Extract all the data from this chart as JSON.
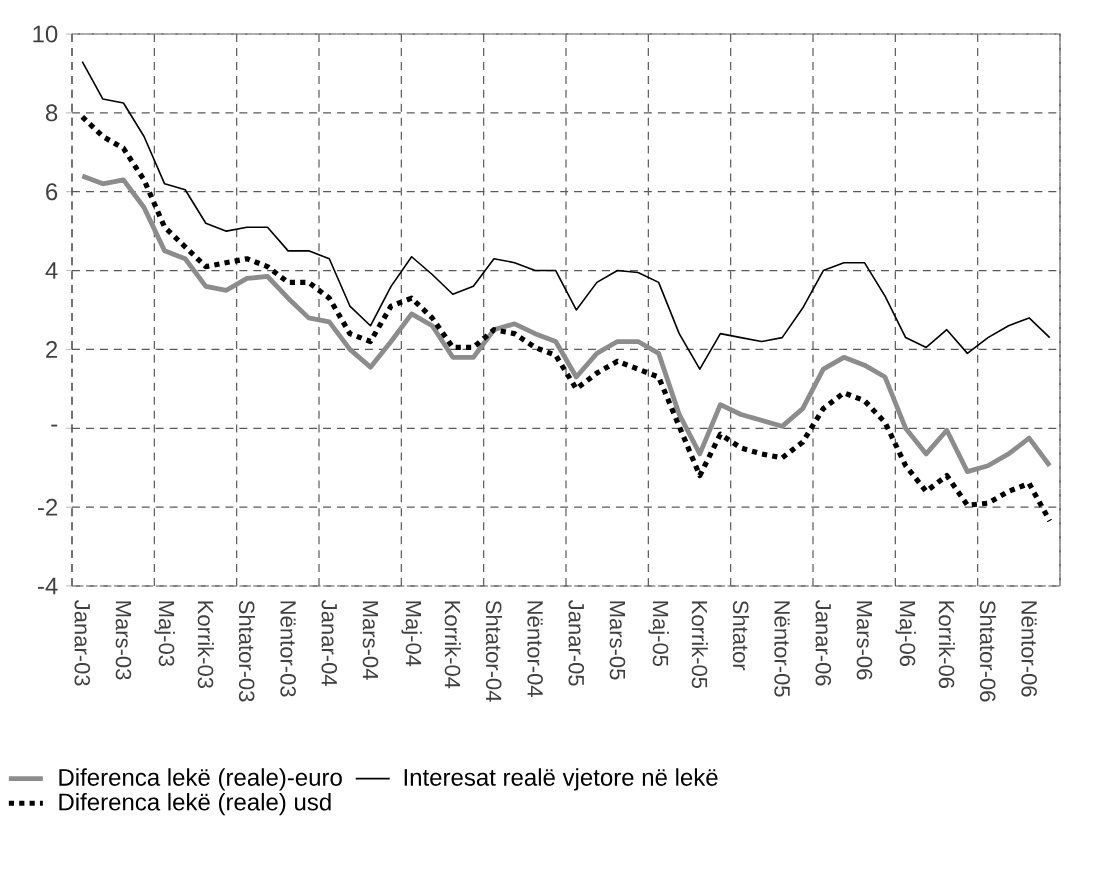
{
  "chart_data": {
    "type": "line",
    "categories": [
      "Janar-03",
      null,
      "Mars-03",
      null,
      "Maj-03",
      null,
      "Korrik-03",
      null,
      "Shtator-03",
      null,
      "Nëntor-03",
      null,
      "Janar-04",
      null,
      "Mars-04",
      null,
      "Maj-04",
      null,
      "Korrik-04",
      null,
      "Shtator-04",
      null,
      "Nëntor-04",
      null,
      "Janar-05",
      null,
      "Mars-05",
      null,
      "Maj-05",
      null,
      "Korrik-05",
      null,
      "Shtator",
      null,
      "Nëntor-05",
      null,
      "Janar-06",
      null,
      "Mars-06",
      null,
      "Maj-06",
      null,
      "Korrik-06",
      null,
      "Shtator-06",
      null,
      "Nëntor-06",
      null
    ],
    "series": [
      {
        "name": "Diferenca lekë (reale)-euro",
        "color": "#8c8c8c",
        "line_style": "solid",
        "values": [
          6.4,
          6.2,
          6.3,
          5.6,
          4.5,
          4.3,
          3.6,
          3.5,
          3.8,
          3.85,
          3.3,
          2.8,
          2.7,
          2.0,
          1.55,
          2.2,
          2.9,
          2.6,
          1.8,
          1.8,
          2.5,
          2.65,
          2.4,
          2.2,
          1.3,
          1.9,
          2.2,
          2.2,
          1.9,
          0.35,
          -0.65,
          0.6,
          0.35,
          0.2,
          0.05,
          0.5,
          1.5,
          1.8,
          1.6,
          1.3,
          0.0,
          -0.65,
          -0.05,
          -1.1,
          -0.95,
          -0.65,
          -0.25,
          -0.95
        ]
      },
      {
        "name": "Diferenca lekë (reale) usd",
        "color": "#000000",
        "line_style": "dotted",
        "values": [
          7.9,
          7.4,
          7.1,
          6.3,
          5.1,
          4.6,
          4.1,
          4.2,
          4.3,
          4.1,
          3.7,
          3.7,
          3.3,
          2.4,
          2.2,
          3.1,
          3.3,
          2.8,
          2.05,
          2.05,
          2.5,
          2.4,
          2.05,
          1.85,
          1.0,
          1.4,
          1.7,
          1.5,
          1.3,
          0.05,
          -1.2,
          -0.15,
          -0.5,
          -0.65,
          -0.75,
          -0.35,
          0.5,
          0.9,
          0.7,
          0.15,
          -0.95,
          -1.6,
          -1.2,
          -1.95,
          -1.9,
          -1.6,
          -1.4,
          -2.35
        ]
      },
      {
        "name": "Interesat realë vjetore në lekë",
        "color": "#000000",
        "line_style": "solid",
        "values": [
          9.3,
          8.35,
          8.25,
          7.4,
          6.2,
          6.05,
          5.2,
          5.0,
          5.1,
          5.1,
          4.5,
          4.5,
          4.3,
          3.1,
          2.6,
          3.6,
          4.35,
          3.9,
          3.4,
          3.6,
          4.3,
          4.2,
          4.0,
          4.0,
          3.0,
          3.7,
          4.0,
          3.95,
          3.7,
          2.4,
          1.5,
          2.4,
          2.3,
          2.2,
          2.3,
          3.05,
          4.0,
          4.2,
          4.2,
          3.35,
          2.3,
          2.05,
          2.5,
          1.9,
          2.3,
          2.6,
          2.8,
          2.3
        ]
      }
    ],
    "ylim": [
      -4,
      10
    ],
    "yticks": [
      -4,
      -2,
      {
        "value": 0,
        "label": "-"
      },
      2,
      4,
      6,
      8,
      10
    ],
    "grid": true,
    "legend": "bottom",
    "marker": "none"
  }
}
